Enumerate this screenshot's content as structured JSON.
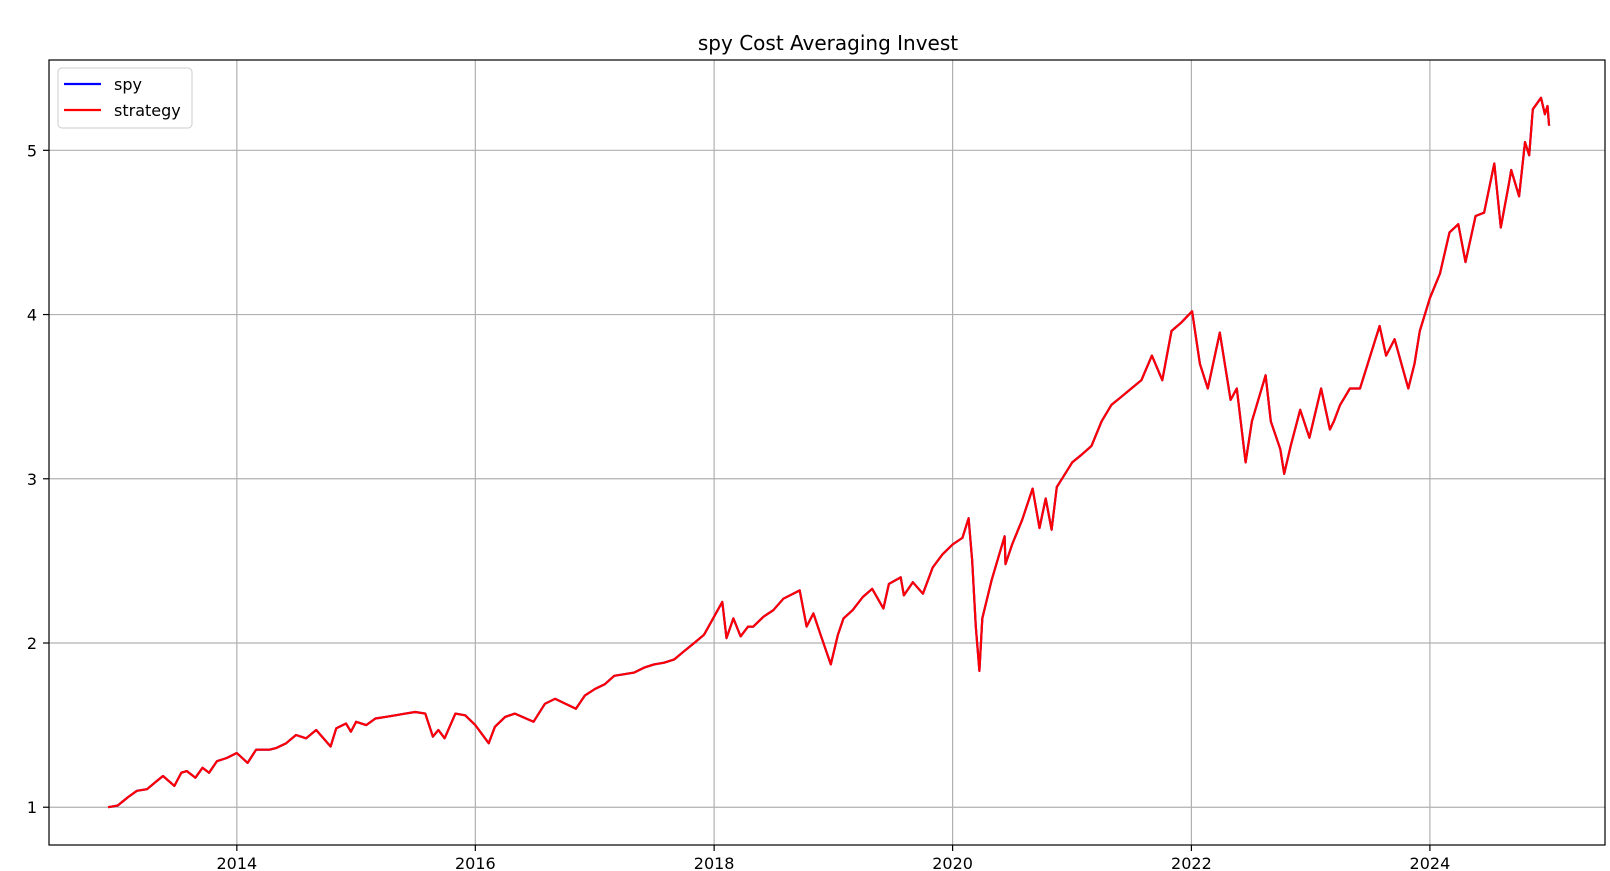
{
  "chart_data": {
    "type": "line",
    "title": "spy Cost Averaging Invest",
    "xlabel": "",
    "ylabel": "",
    "grid": true,
    "legend_position": "top-left",
    "xlim": [
      "2012-06-05",
      "2025-06-20"
    ],
    "ylim": [
      0.77,
      5.55
    ],
    "x_ticks": [
      "2014-01-01",
      "2016-01-01",
      "2018-01-01",
      "2020-01-01",
      "2022-01-01",
      "2024-01-01"
    ],
    "x_tick_labels": [
      "2014",
      "2016",
      "2018",
      "2020",
      "2022",
      "2024"
    ],
    "y_ticks": [
      1,
      2,
      3,
      4,
      5
    ],
    "y_tick_labels": [
      "1",
      "2",
      "3",
      "4",
      "5"
    ],
    "x": [
      "2012-12-03",
      "2013-01-01",
      "2013-02-01",
      "2013-03-01",
      "2013-04-01",
      "2013-05-01",
      "2013-05-20",
      "2013-06-24",
      "2013-07-15",
      "2013-08-01",
      "2013-08-27",
      "2013-09-18",
      "2013-10-08",
      "2013-11-01",
      "2013-12-01",
      "2014-01-01",
      "2014-02-03",
      "2014-03-01",
      "2014-04-11",
      "2014-05-01",
      "2014-06-01",
      "2014-07-01",
      "2014-08-01",
      "2014-09-01",
      "2014-10-15",
      "2014-11-01",
      "2014-12-01",
      "2014-12-16",
      "2015-01-01",
      "2015-02-01",
      "2015-03-01",
      "2015-04-01",
      "2015-05-01",
      "2015-06-01",
      "2015-07-01",
      "2015-08-01",
      "2015-08-24",
      "2015-09-10",
      "2015-09-29",
      "2015-11-01",
      "2015-12-01",
      "2016-01-01",
      "2016-02-11",
      "2016-03-01",
      "2016-04-01",
      "2016-05-01",
      "2016-06-27",
      "2016-08-01",
      "2016-09-01",
      "2016-11-04",
      "2016-12-01",
      "2017-01-01",
      "2017-02-01",
      "2017-03-01",
      "2017-04-01",
      "2017-05-01",
      "2017-06-01",
      "2017-07-01",
      "2017-08-01",
      "2017-09-01",
      "2017-10-01",
      "2017-11-01",
      "2017-12-01",
      "2018-01-26",
      "2018-02-08",
      "2018-03-01",
      "2018-03-23",
      "2018-04-15",
      "2018-05-01",
      "2018-06-01",
      "2018-07-01",
      "2018-08-01",
      "2018-09-20",
      "2018-10-11",
      "2018-11-01",
      "2018-11-23",
      "2018-12-24",
      "2019-01-15",
      "2019-02-01",
      "2019-03-01",
      "2019-04-01",
      "2019-04-30",
      "2019-06-03",
      "2019-06-20",
      "2019-07-26",
      "2019-08-05",
      "2019-09-01",
      "2019-10-02",
      "2019-11-01",
      "2019-12-01",
      "2020-01-01",
      "2020-01-31",
      "2020-02-19",
      "2020-03-01",
      "2020-03-12",
      "2020-03-23",
      "2020-04-01",
      "2020-04-29",
      "2020-06-08",
      "2020-06-11",
      "2020-07-01",
      "2020-08-01",
      "2020-09-02",
      "2020-09-23",
      "2020-10-12",
      "2020-10-30",
      "2020-11-15",
      "2020-12-01",
      "2021-01-01",
      "2021-02-01",
      "2021-03-01",
      "2021-04-01",
      "2021-05-01",
      "2021-06-01",
      "2021-07-01",
      "2021-08-01",
      "2021-09-02",
      "2021-10-04",
      "2021-11-01",
      "2021-11-30",
      "2022-01-03",
      "2022-01-27",
      "2022-02-20",
      "2022-03-29",
      "2022-05-01",
      "2022-05-20",
      "2022-06-16",
      "2022-07-05",
      "2022-08-16",
      "2022-09-01",
      "2022-09-30",
      "2022-10-12",
      "2022-11-01",
      "2022-11-30",
      "2022-12-28",
      "2023-02-02",
      "2023-03-01",
      "2023-03-13",
      "2023-04-01",
      "2023-05-01",
      "2023-06-01",
      "2023-07-31",
      "2023-08-20",
      "2023-09-15",
      "2023-10-27",
      "2023-11-15",
      "2023-12-01",
      "2024-01-01",
      "2024-02-01",
      "2024-03-01",
      "2024-03-28",
      "2024-04-19",
      "2024-05-20",
      "2024-06-15",
      "2024-07-16",
      "2024-08-05",
      "2024-08-30",
      "2024-09-06",
      "2024-09-30",
      "2024-10-18",
      "2024-10-31",
      "2024-11-11",
      "2024-12-06",
      "2024-12-18",
      "2024-12-26",
      "2024-12-31"
    ],
    "series": [
      {
        "name": "spy",
        "color": "#0000ff",
        "values": [
          1.0,
          1.01,
          1.06,
          1.1,
          1.11,
          1.16,
          1.19,
          1.13,
          1.21,
          1.22,
          1.18,
          1.24,
          1.21,
          1.28,
          1.3,
          1.33,
          1.27,
          1.35,
          1.35,
          1.36,
          1.39,
          1.44,
          1.42,
          1.47,
          1.37,
          1.48,
          1.51,
          1.46,
          1.52,
          1.5,
          1.54,
          1.55,
          1.56,
          1.57,
          1.58,
          1.57,
          1.43,
          1.47,
          1.42,
          1.57,
          1.56,
          1.5,
          1.39,
          1.49,
          1.55,
          1.57,
          1.52,
          1.63,
          1.66,
          1.6,
          1.68,
          1.72,
          1.75,
          1.8,
          1.81,
          1.82,
          1.85,
          1.87,
          1.88,
          1.9,
          1.95,
          2.0,
          2.05,
          2.25,
          2.03,
          2.15,
          2.04,
          2.1,
          2.1,
          2.16,
          2.2,
          2.27,
          2.32,
          2.1,
          2.18,
          2.05,
          1.87,
          2.05,
          2.15,
          2.2,
          2.28,
          2.33,
          2.21,
          2.36,
          2.4,
          2.29,
          2.37,
          2.3,
          2.46,
          2.54,
          2.6,
          2.64,
          2.76,
          2.5,
          2.1,
          1.83,
          2.15,
          2.38,
          2.65,
          2.48,
          2.6,
          2.75,
          2.94,
          2.7,
          2.88,
          2.69,
          2.95,
          3.0,
          3.1,
          3.15,
          3.2,
          3.35,
          3.45,
          3.5,
          3.55,
          3.6,
          3.75,
          3.6,
          3.9,
          3.95,
          4.02,
          3.7,
          3.55,
          3.89,
          3.48,
          3.55,
          3.1,
          3.35,
          3.63,
          3.35,
          3.18,
          3.03,
          3.2,
          3.42,
          3.25,
          3.55,
          3.3,
          3.35,
          3.45,
          3.55,
          3.55,
          3.93,
          3.75,
          3.85,
          3.55,
          3.7,
          3.9,
          4.1,
          4.25,
          4.5,
          4.55,
          4.32,
          4.6,
          4.62,
          4.92,
          4.53,
          4.8,
          4.88,
          4.72,
          5.05,
          4.97,
          5.25,
          5.32,
          5.22,
          5.27,
          5.15
        ]
      },
      {
        "name": "strategy",
        "color": "#ff0000",
        "values": [
          1.0,
          1.01,
          1.06,
          1.1,
          1.11,
          1.16,
          1.19,
          1.13,
          1.21,
          1.22,
          1.18,
          1.24,
          1.21,
          1.28,
          1.3,
          1.33,
          1.27,
          1.35,
          1.35,
          1.36,
          1.39,
          1.44,
          1.42,
          1.47,
          1.37,
          1.48,
          1.51,
          1.46,
          1.52,
          1.5,
          1.54,
          1.55,
          1.56,
          1.57,
          1.58,
          1.57,
          1.43,
          1.47,
          1.42,
          1.57,
          1.56,
          1.5,
          1.39,
          1.49,
          1.55,
          1.57,
          1.52,
          1.63,
          1.66,
          1.6,
          1.68,
          1.72,
          1.75,
          1.8,
          1.81,
          1.82,
          1.85,
          1.87,
          1.88,
          1.9,
          1.95,
          2.0,
          2.05,
          2.25,
          2.03,
          2.15,
          2.04,
          2.1,
          2.1,
          2.16,
          2.2,
          2.27,
          2.32,
          2.1,
          2.18,
          2.05,
          1.87,
          2.05,
          2.15,
          2.2,
          2.28,
          2.33,
          2.21,
          2.36,
          2.4,
          2.29,
          2.37,
          2.3,
          2.46,
          2.54,
          2.6,
          2.64,
          2.76,
          2.5,
          2.1,
          1.83,
          2.15,
          2.38,
          2.65,
          2.48,
          2.6,
          2.75,
          2.94,
          2.7,
          2.88,
          2.69,
          2.95,
          3.0,
          3.1,
          3.15,
          3.2,
          3.35,
          3.45,
          3.5,
          3.55,
          3.6,
          3.75,
          3.6,
          3.9,
          3.95,
          4.02,
          3.7,
          3.55,
          3.89,
          3.48,
          3.55,
          3.1,
          3.35,
          3.63,
          3.35,
          3.18,
          3.03,
          3.2,
          3.42,
          3.25,
          3.55,
          3.3,
          3.35,
          3.45,
          3.55,
          3.55,
          3.93,
          3.75,
          3.85,
          3.55,
          3.7,
          3.9,
          4.1,
          4.25,
          4.5,
          4.55,
          4.32,
          4.6,
          4.62,
          4.92,
          4.53,
          4.8,
          4.88,
          4.72,
          5.05,
          4.97,
          5.25,
          5.32,
          5.22,
          5.27,
          5.15
        ]
      }
    ]
  }
}
